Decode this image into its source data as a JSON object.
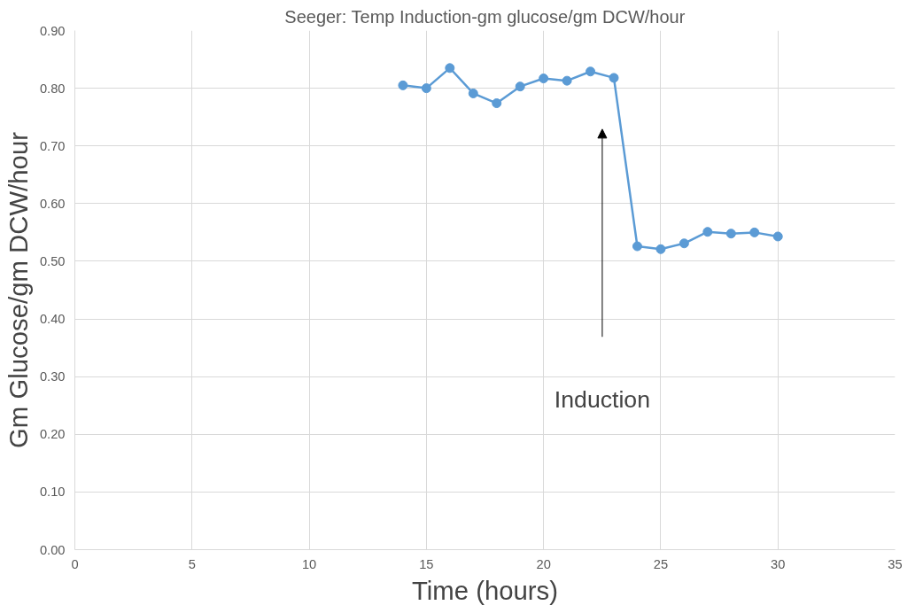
{
  "chart_data": {
    "type": "line",
    "title": "Seeger: Temp Induction-gm glucose/gm DCW/hour",
    "xlabel": "Time (hours)",
    "ylabel": "Gm Glucose/gm DCW/hour",
    "x": [
      14,
      15,
      16,
      17,
      18,
      19,
      20,
      21,
      22,
      23,
      24,
      25,
      26,
      27,
      28,
      29,
      30
    ],
    "series": [
      {
        "color": "#5b9bd5",
        "values": [
          0.805,
          0.8,
          0.835,
          0.791,
          0.774,
          0.803,
          0.817,
          0.813,
          0.829,
          0.818,
          0.526,
          0.521,
          0.531,
          0.551,
          0.548,
          0.55,
          0.543
        ]
      }
    ],
    "xlim": [
      0,
      35
    ],
    "xticks": [
      0,
      5,
      10,
      15,
      20,
      25,
      30,
      35
    ],
    "ylim": [
      0,
      0.9
    ],
    "yticks": [
      {
        "value": 0,
        "label": "0.00"
      },
      {
        "value": 0.1,
        "label": "0.10"
      },
      {
        "value": 0.2,
        "label": "0.20"
      },
      {
        "value": 0.3,
        "label": "0.30"
      },
      {
        "value": 0.4,
        "label": "0.40"
      },
      {
        "value": 0.5,
        "label": "0.50"
      },
      {
        "value": 0.6,
        "label": "0.60"
      },
      {
        "value": 0.7,
        "label": "0.70"
      },
      {
        "value": 0.8,
        "label": "0.80"
      },
      {
        "value": 0.9,
        "label": "0.90"
      }
    ],
    "annotations": [
      "Induction"
    ],
    "grid": true,
    "marker": "circle",
    "line_style": "solid"
  }
}
